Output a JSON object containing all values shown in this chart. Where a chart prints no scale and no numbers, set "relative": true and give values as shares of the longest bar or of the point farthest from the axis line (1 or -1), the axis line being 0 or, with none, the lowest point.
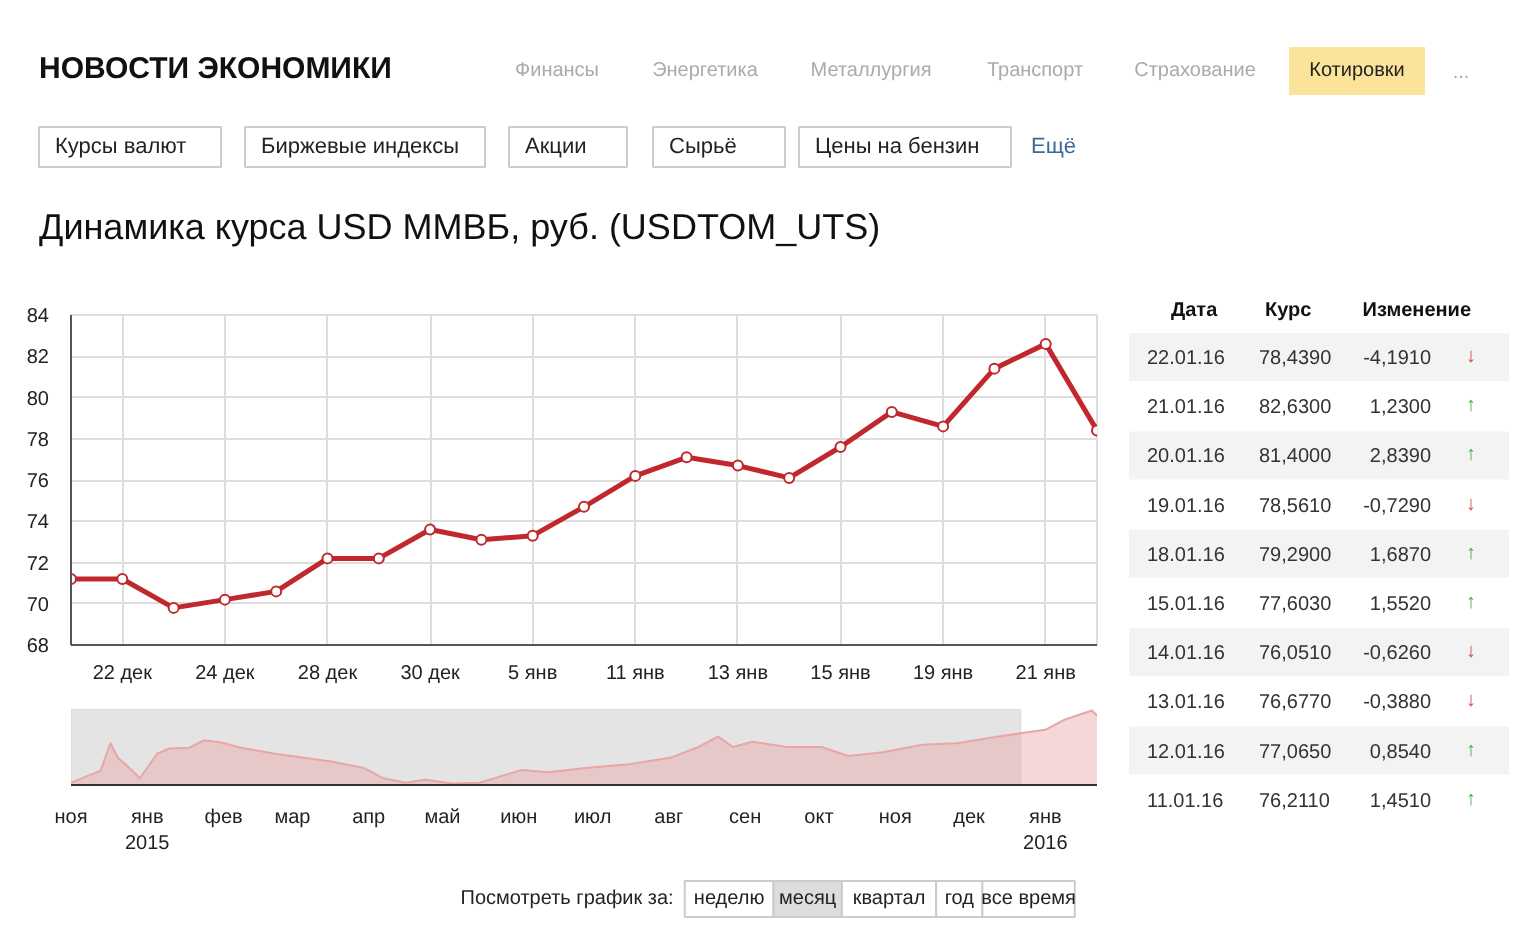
{
  "chart_data": [
    {
      "type": "line",
      "title": "Динамика курса USD ММВБ, руб. (USDTOM_UTS)",
      "annotations": [
        "НОВОСТИ ЭКОНОМИКИ",
        "Финансы",
        "Энергетика",
        "Металлургия",
        "Транспорт",
        "Страхование",
        "Котировки",
        "...",
        "Курсы валют",
        "Биржевые индексы",
        "Акции",
        "Сырьё",
        "Цены на бензин",
        "Ещё"
      ],
      "categories": [
        null,
        "22 дек",
        null,
        "24 дек",
        null,
        "28 дек",
        null,
        "30 дек",
        null,
        "5 янв",
        null,
        "11 янв",
        null,
        "13 янв",
        null,
        "15 янв",
        null,
        "19 янв",
        null,
        "21 янв",
        null
      ],
      "series": [
        {
          "color": "#c0282d",
          "values": [
            71.2,
            71.2,
            69.8,
            70.2,
            70.6,
            72.2,
            72.2,
            73.6,
            73.1,
            73.3,
            74.7,
            76.2,
            77.1,
            76.7,
            76.1,
            77.6,
            79.3,
            78.6,
            81.4,
            82.6,
            78.4
          ]
        }
      ],
      "ylim": [
        68,
        84
      ],
      "yticks": [
        68,
        70,
        72,
        74,
        76,
        78,
        80,
        82,
        84
      ],
      "grid": true,
      "marker": "circle"
    },
    {
      "type": "area",
      "relative": true,
      "x": [
        "2014-12-01",
        "2014-12-09",
        "2014-12-13",
        "2014-12-17",
        "2014-12-20",
        "2014-12-26",
        "2014-12-29",
        "2015-01-01",
        "2015-01-05",
        "2015-01-10",
        "2015-01-18",
        "2015-01-24",
        "2015-01-31",
        "2015-02-08",
        "2015-02-22",
        "2015-03-05",
        "2015-03-16",
        "2015-03-30",
        "2015-04-07",
        "2015-04-16",
        "2015-04-24",
        "2015-05-05",
        "2015-05-16",
        "2015-06-02",
        "2015-06-13",
        "2015-06-29",
        "2015-07-16",
        "2015-08-02",
        "2015-08-13",
        "2015-08-21",
        "2015-08-27",
        "2015-09-04",
        "2015-09-18",
        "2015-10-02",
        "2015-10-13",
        "2015-10-27",
        "2015-11-12",
        "2015-11-26",
        "2015-12-13",
        "2015-12-21",
        "2016-01-01",
        "2016-01-09",
        "2016-01-20",
        "2016-01-22"
      ],
      "series": [
        {
          "color": "#e8a6a6",
          "values": [
            0.03,
            0.14,
            0.19,
            0.56,
            0.37,
            0.19,
            0.09,
            0.23,
            0.42,
            0.49,
            0.5,
            0.6,
            0.57,
            0.5,
            0.42,
            0.37,
            0.32,
            0.23,
            0.09,
            0.03,
            0.07,
            0.02,
            0.03,
            0.2,
            0.17,
            0.23,
            0.28,
            0.37,
            0.51,
            0.65,
            0.51,
            0.58,
            0.51,
            0.51,
            0.39,
            0.44,
            0.54,
            0.56,
            0.65,
            0.69,
            0.74,
            0.88,
            1,
            0.93
          ]
        }
      ],
      "xlim": [
        "2014-12-01",
        "2016-01-22"
      ],
      "xticks": [
        {
          "value": "2014-12-01",
          "label": "ноя"
        },
        {
          "value": "2015-01-01",
          "label": "янв\n2015"
        },
        {
          "value": "2015-02-01",
          "label": "фев"
        },
        {
          "value": "2015-03-01",
          "label": "мар"
        },
        {
          "value": "2015-04-01",
          "label": "апр"
        },
        {
          "value": "2015-05-01",
          "label": "май"
        },
        {
          "value": "2015-06-01",
          "label": "июн"
        },
        {
          "value": "2015-07-01",
          "label": "июл"
        },
        {
          "value": "2015-08-01",
          "label": "авг"
        },
        {
          "value": "2015-09-01",
          "label": "сен"
        },
        {
          "value": "2015-10-01",
          "label": "окт"
        },
        {
          "value": "2015-11-01",
          "label": "ноя"
        },
        {
          "value": "2015-12-01",
          "label": "дек"
        },
        {
          "value": "2016-01-01",
          "label": "янв\n2016"
        }
      ],
      "bands": [
        {
          "axis": "x",
          "from": "2014-12-01",
          "to": "2015-12-22",
          "color": "#e4e4e4"
        }
      ],
      "annotations": [
        "Посмотреть график за:",
        "неделю",
        "месяц",
        "квартал",
        "год",
        "все время"
      ],
      "grid": false
    },
    {
      "type": "other",
      "annotations": [
        "Дата",
        "Курс",
        "Изменение",
        "22.01.16",
        "78,4390",
        "-4,1910",
        "↓",
        "21.01.16",
        "82,6300",
        "1,2300",
        "↑",
        "20.01.16",
        "81,4000",
        "2,8390",
        "↑",
        "19.01.16",
        "78,5610",
        "-0,7290",
        "↓",
        "18.01.16",
        "79,2900",
        "1,6870",
        "↑",
        "15.01.16",
        "77,6030",
        "1,5520",
        "↑",
        "14.01.16",
        "76,0510",
        "-0,6260",
        "↓",
        "13.01.16",
        "76,6770",
        "-0,3880",
        "↓",
        "12.01.16",
        "77,0650",
        "0,8540",
        "↑",
        "11.01.16",
        "76,2110",
        "1,4510",
        "↑"
      ],
      "colors": [
        "#d05050",
        "#4caf50",
        "#4caf50",
        "#d05050",
        "#4caf50",
        "#4caf50",
        "#d05050",
        "#d05050",
        "#4caf50",
        "#4caf50"
      ]
    }
  ]
}
